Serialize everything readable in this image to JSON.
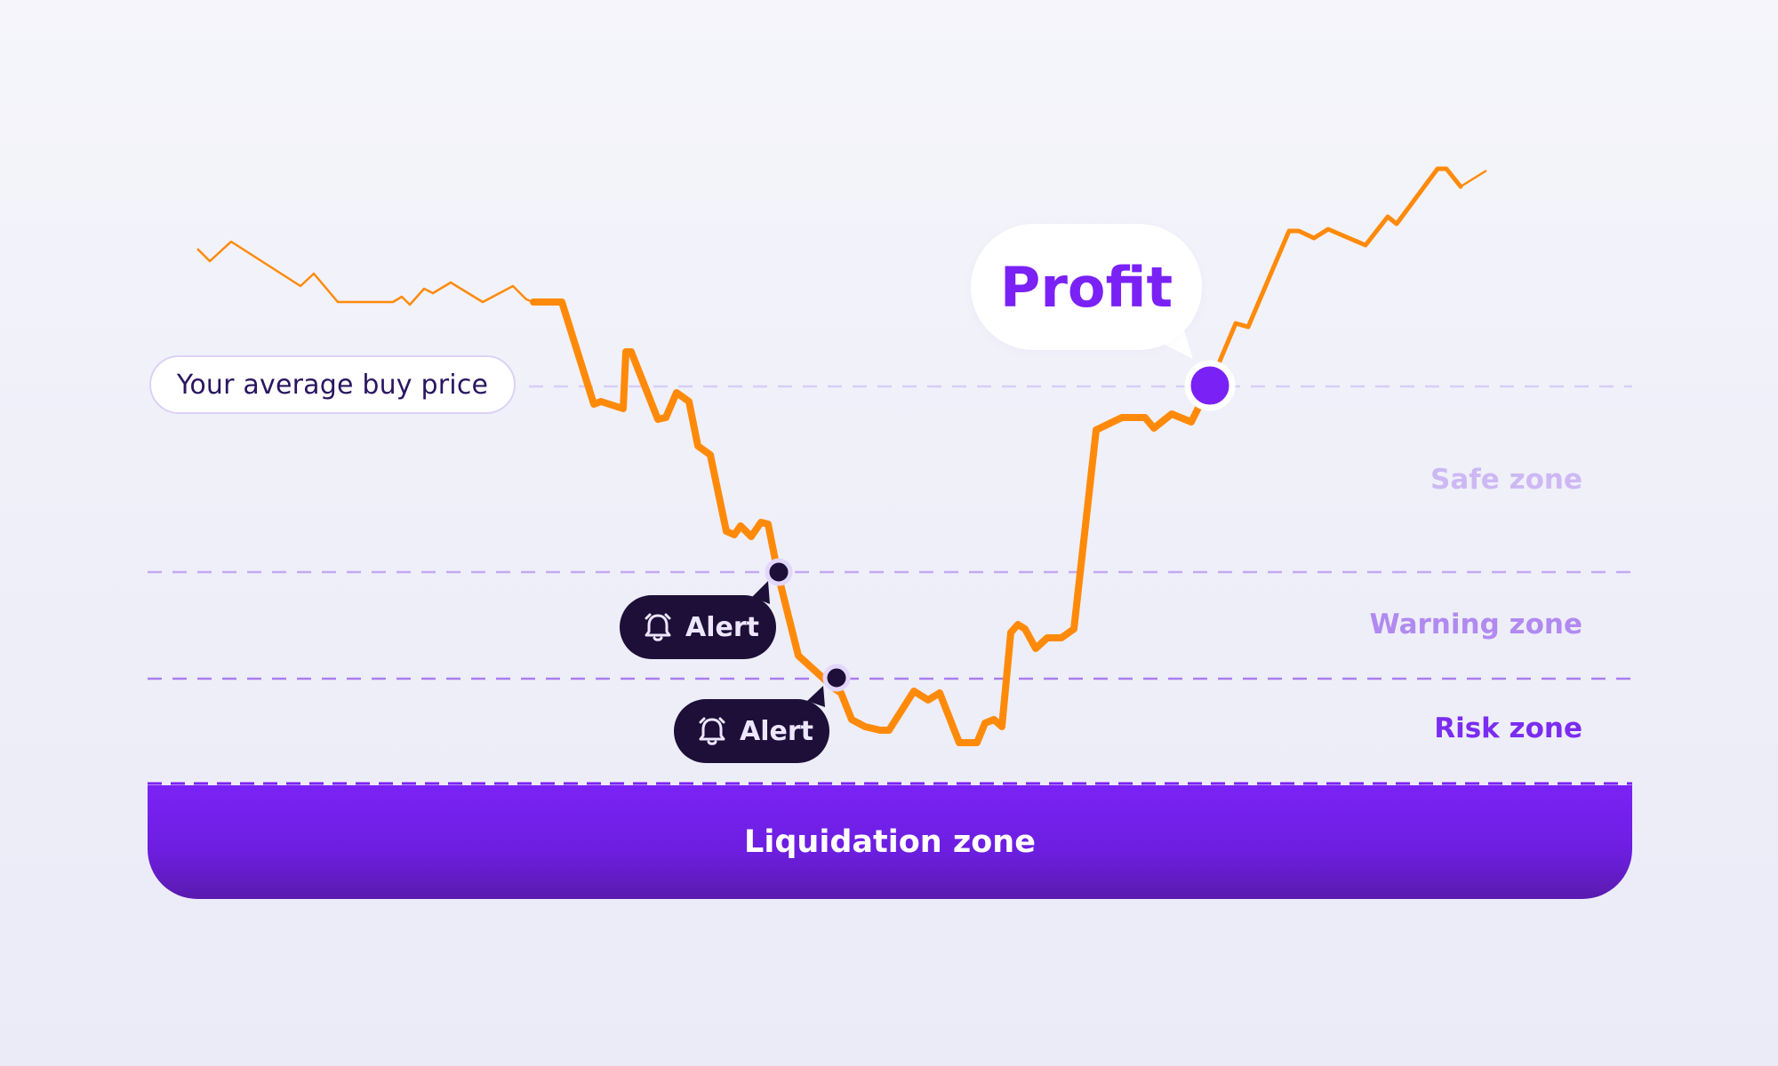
{
  "avg_buy_price_label": "Your average buy price",
  "zones": {
    "safe": "Safe zone",
    "warning": "Warning zone",
    "risk": "Risk zone",
    "liquidation": "Liquidation zone"
  },
  "alerts": [
    "Alert",
    "Alert"
  ],
  "profit_label": "Profit",
  "icons": [
    "alarm-bell-icon"
  ],
  "colors": {
    "price_line": "#ff8a0a",
    "accent": "#7a21f5",
    "alert_bg": "#1d0f38",
    "safe_label": "#cdb8f3",
    "warning_label": "#b18af0",
    "risk_label": "#7b2cf0",
    "threshold_line": "#b796ef"
  }
}
